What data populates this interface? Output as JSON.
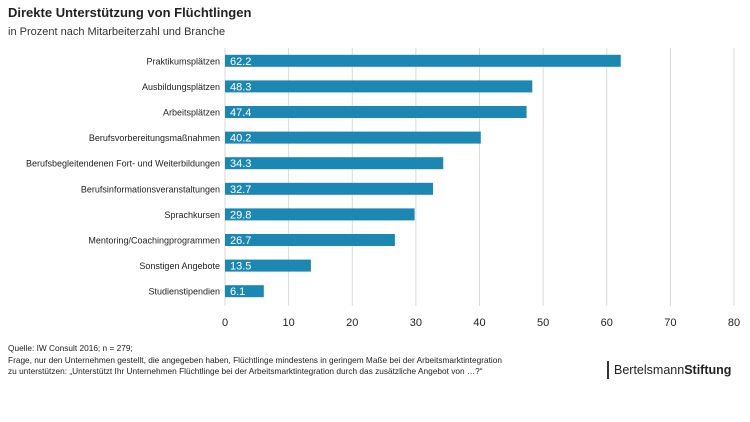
{
  "chart_data": {
    "type": "bar",
    "orientation": "horizontal",
    "title": "Direkte Unterstützung von Flüchtlingen",
    "subtitle": "in Prozent nach Mitarbeiterzahl und Branche",
    "categories": [
      "Praktikumsplätzen",
      "Ausbildungsplätzen",
      "Arbeitsplätzen",
      "Berufsvorbereitungsmaßnahmen",
      "Berufsbegleitendenen Fort- und Weiterbildungen",
      "Berufsinformationsveranstaltungen",
      "Sprachkursen",
      "Mentoring/Coachingprogrammen",
      "Sonstigen Angebote",
      "Studienstipendien"
    ],
    "values": [
      62.2,
      48.3,
      47.4,
      40.2,
      34.3,
      32.7,
      29.8,
      26.7,
      13.5,
      6.1
    ],
    "value_labels": [
      "62.2",
      "48.3",
      "47.4",
      "40.2",
      "34.3",
      "32.7",
      "29.8",
      "26.7",
      "13.5",
      "6.1"
    ],
    "xlim": [
      0,
      80
    ],
    "xticks": [
      "0",
      "10",
      "20",
      "30",
      "40",
      "50",
      "60",
      "70",
      "80"
    ],
    "grid": true,
    "bar_color": "#1c87b3",
    "grid_color": "#d9d9d9"
  },
  "notes": {
    "source": "Quelle: IW Consult 2016; n = 279;",
    "question_line1": "Frage, nur den Unternehmen gestellt, die angegeben haben, Flüchtlinge mindestens in geringem Maße bei der Arbeitsmarktintegration",
    "question_line2": "zu unterstützen: „Unterstützt Ihr Unternehmen Flüchtlinge bei der Arbeitsmarktintegration durch das zusätzliche Angebot von …?“"
  },
  "brand": {
    "regular": "Bertelsmann",
    "bold": "Stiftung"
  }
}
